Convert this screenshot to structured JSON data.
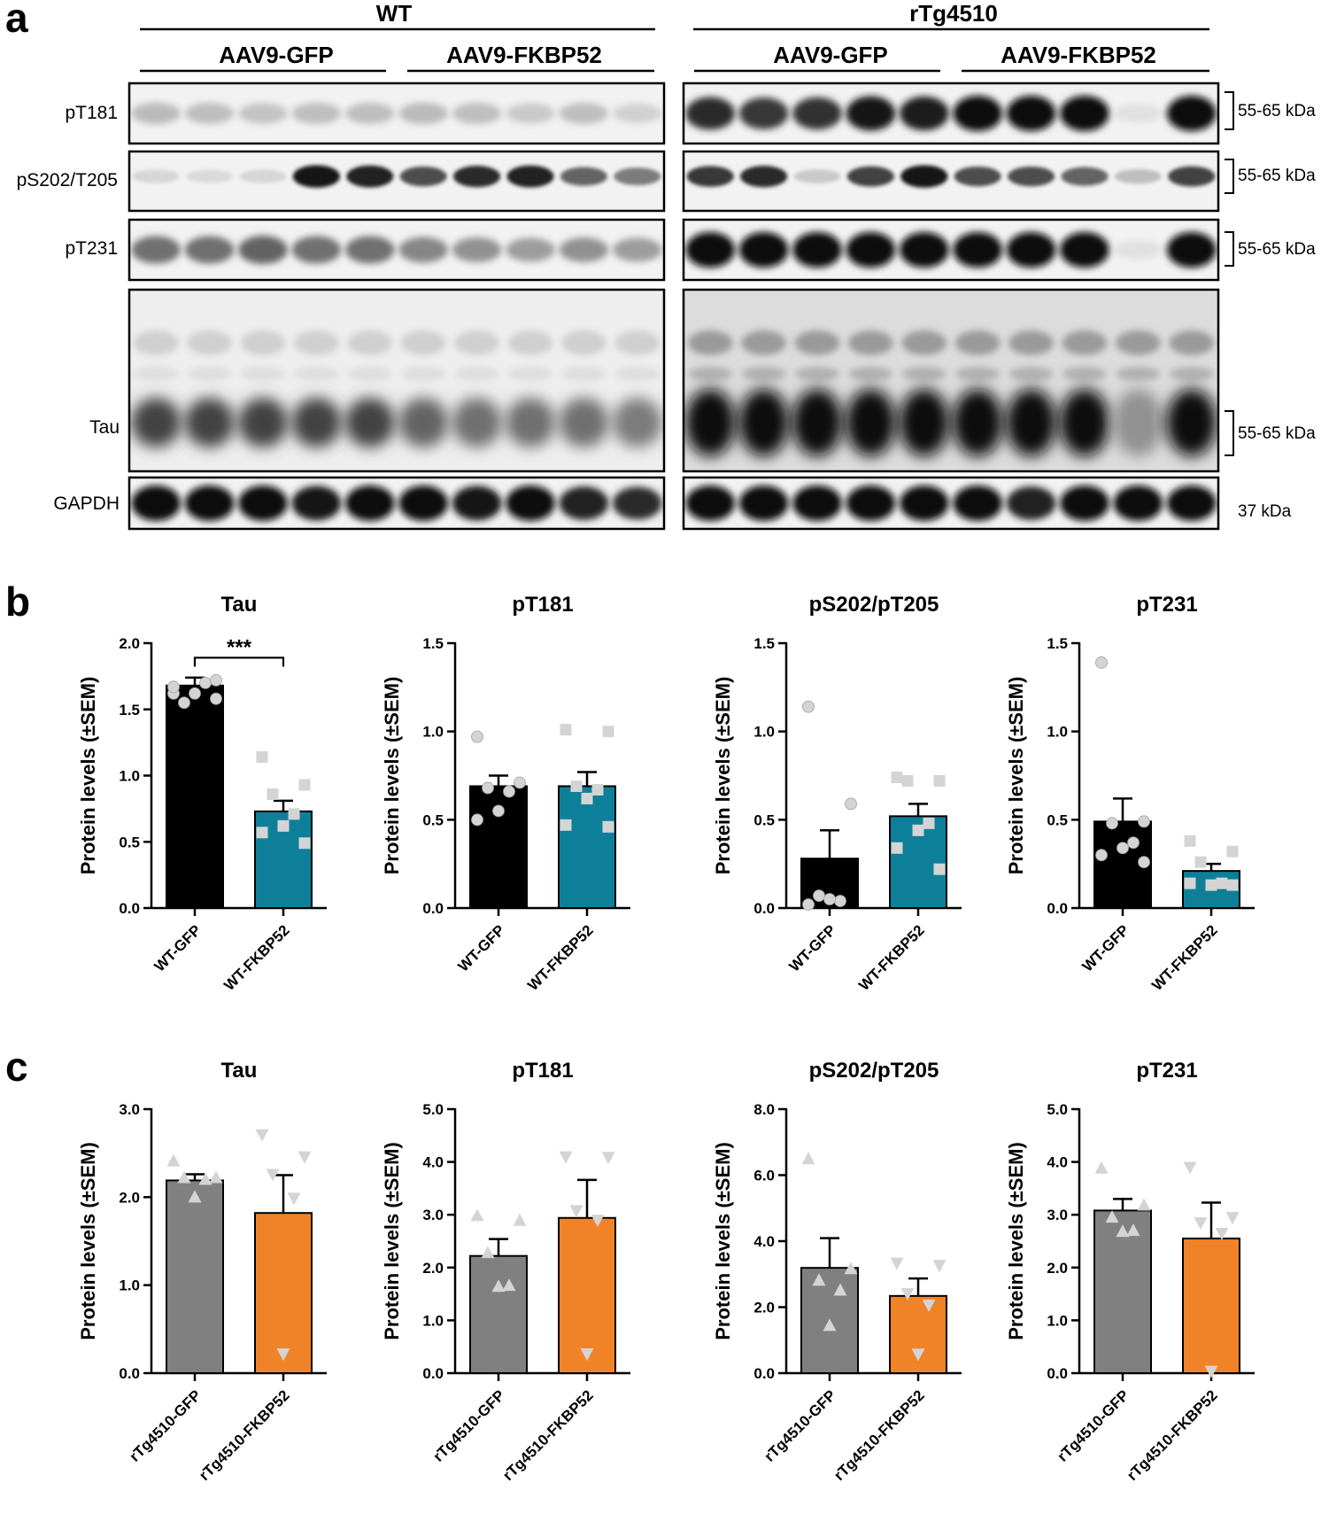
{
  "panel_a": {
    "letter": "a",
    "groups": [
      {
        "label": "WT",
        "subgroups": [
          "AAV9-GFP",
          "AAV9-FKBP52"
        ]
      },
      {
        "label": "rTg4510",
        "subgroups": [
          "AAV9-GFP",
          "AAV9-FKBP52"
        ]
      }
    ],
    "rows": [
      {
        "label": "pT181",
        "kda": "55-65 kDa"
      },
      {
        "label": "pS202/T205",
        "kda": "55-65 kDa"
      },
      {
        "label": "pT231",
        "kda": "55-65 kDa"
      },
      {
        "label": "Tau",
        "kda": "55-65 kDa"
      },
      {
        "label": "GAPDH",
        "kda": "37 kDa"
      }
    ]
  },
  "panel_b": {
    "letter": "b"
  },
  "panel_c": {
    "letter": "c"
  },
  "colors": {
    "wt_gfp": "#000000",
    "wt_fkbp52": "#0e7f98",
    "rtg_gfp": "#808080",
    "rtg_fkbp52": "#f08328",
    "point": "#d4d4d4"
  },
  "chart_data": [
    {
      "type": "bar",
      "panel": "b",
      "title": "Tau",
      "ylabel": "Protein levels (±SEM)",
      "ylim": [
        0,
        2.0
      ],
      "yticks": [
        "0.0",
        "0.5",
        "1.0",
        "1.5",
        "2.0"
      ],
      "categories": [
        "WT-GFP",
        "WT-FKBP52"
      ],
      "values": [
        1.68,
        0.73
      ],
      "sem": [
        0.06,
        0.08
      ],
      "marker": [
        "circle",
        "square"
      ],
      "annotation": "***",
      "points": [
        [
          1.62,
          1.58,
          1.55,
          1.7,
          1.62,
          1.67,
          1.72
        ],
        [
          1.14,
          0.93,
          0.86,
          0.71,
          0.62,
          0.57,
          0.49
        ]
      ]
    },
    {
      "type": "bar",
      "panel": "b",
      "title": "pT181",
      "ylabel": "Protein levels (±SEM)",
      "ylim": [
        0,
        1.5
      ],
      "yticks": [
        "0.0",
        "0.5",
        "1.0",
        "1.5"
      ],
      "categories": [
        "WT-GFP",
        "WT-FKBP52"
      ],
      "values": [
        0.69,
        0.69
      ],
      "sem": [
        0.06,
        0.08
      ],
      "marker": [
        "circle",
        "square"
      ],
      "points": [
        [
          0.97,
          0.71,
          0.68,
          0.66,
          0.55,
          0.5
        ],
        [
          1.01,
          1.0,
          0.69,
          0.67,
          0.62,
          0.47,
          0.46
        ]
      ]
    },
    {
      "type": "bar",
      "panel": "b",
      "title": "pS202/pT205",
      "ylabel": "Protein levels (±SEM)",
      "ylim": [
        0,
        1.5
      ],
      "yticks": [
        "0.0",
        "0.5",
        "1.0",
        "1.5"
      ],
      "categories": [
        "WT-GFP",
        "WT-FKBP52"
      ],
      "values": [
        0.28,
        0.52
      ],
      "sem": [
        0.16,
        0.07
      ],
      "marker": [
        "circle",
        "square"
      ],
      "points": [
        [
          1.14,
          0.59,
          0.07,
          0.04,
          0.05,
          0.02
        ],
        [
          0.74,
          0.72,
          0.72,
          0.48,
          0.44,
          0.34,
          0.22
        ]
      ]
    },
    {
      "type": "bar",
      "panel": "b",
      "title": "pT231",
      "ylabel": "Protein levels (±SEM)",
      "ylim": [
        0,
        1.5
      ],
      "yticks": [
        "0.0",
        "0.5",
        "1.0",
        "1.5"
      ],
      "categories": [
        "WT-GFP",
        "WT-FKBP52"
      ],
      "values": [
        0.49,
        0.21
      ],
      "sem": [
        0.13,
        0.04
      ],
      "marker": [
        "circle",
        "square"
      ],
      "points": [
        [
          1.39,
          0.49,
          0.48,
          0.37,
          0.34,
          0.3,
          0.26
        ],
        [
          0.38,
          0.32,
          0.26,
          0.14,
          0.13,
          0.14,
          0.13
        ]
      ]
    },
    {
      "type": "bar",
      "panel": "c",
      "title": "Tau",
      "ylabel": "Protein levels (±SEM)",
      "ylim": [
        0,
        3.0
      ],
      "yticks": [
        "0.0",
        "1.0",
        "2.0",
        "3.0"
      ],
      "categories": [
        "rTg4510-GFP",
        "rTg4510-FKBP52"
      ],
      "values": [
        2.19,
        1.82
      ],
      "sem": [
        0.07,
        0.43
      ],
      "marker": [
        "triangle-up",
        "triangle-down"
      ],
      "points": [
        [
          2.41,
          2.22,
          2.22,
          2.2,
          2.0
        ],
        [
          2.71,
          2.46,
          2.26,
          1.99,
          0.22
        ]
      ]
    },
    {
      "type": "bar",
      "panel": "c",
      "title": "pT181",
      "ylabel": "Protein levels (±SEM)",
      "ylim": [
        0,
        5.0
      ],
      "yticks": [
        "0.0",
        "1.0",
        "2.0",
        "3.0",
        "4.0",
        "5.0"
      ],
      "categories": [
        "rTg4510-GFP",
        "rTg4510-FKBP52"
      ],
      "values": [
        2.22,
        2.94
      ],
      "sem": [
        0.32,
        0.72
      ],
      "marker": [
        "triangle-up",
        "triangle-down"
      ],
      "points": [
        [
          2.98,
          2.89,
          2.28,
          1.66,
          1.64
        ],
        [
          4.1,
          4.09,
          3.08,
          2.9,
          0.37
        ]
      ]
    },
    {
      "type": "bar",
      "panel": "c",
      "title": "pS202/pT205",
      "ylabel": "Protein levels (±SEM)",
      "ylim": [
        0,
        8.0
      ],
      "yticks": [
        "0.0",
        "2.0",
        "4.0",
        "6.0",
        "8.0"
      ],
      "categories": [
        "rTg4510-GFP",
        "rTg4510-FKBP52"
      ],
      "values": [
        3.19,
        2.34
      ],
      "sem": [
        0.9,
        0.53
      ],
      "marker": [
        "triangle-up",
        "triangle-down"
      ],
      "points": [
        [
          6.49,
          3.16,
          2.81,
          2.51,
          1.44
        ],
        [
          3.34,
          3.27,
          2.42,
          2.07,
          0.58
        ]
      ]
    },
    {
      "type": "bar",
      "panel": "c",
      "title": "pT231",
      "ylabel": "Protein levels (±SEM)",
      "ylim": [
        0,
        5.0
      ],
      "yticks": [
        "0.0",
        "1.0",
        "2.0",
        "3.0",
        "4.0",
        "5.0"
      ],
      "categories": [
        "rTg4510-GFP",
        "rTg4510-FKBP52"
      ],
      "values": [
        3.08,
        2.55
      ],
      "sem": [
        0.22,
        0.68
      ],
      "marker": [
        "triangle-up",
        "triangle-down"
      ],
      "points": [
        [
          3.88,
          3.18,
          2.95,
          2.7,
          2.68
        ],
        [
          3.9,
          2.95,
          2.85,
          2.65,
          0.04
        ]
      ]
    }
  ]
}
